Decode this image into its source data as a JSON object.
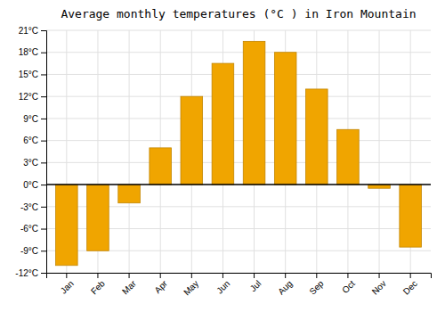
{
  "chart_data": {
    "type": "bar",
    "title": "Average monthly temperatures (°C ) in Iron Mountain",
    "categories": [
      "Jan",
      "Feb",
      "Mar",
      "Apr",
      "May",
      "Jun",
      "Jul",
      "Aug",
      "Sep",
      "Oct",
      "Nov",
      "Dec"
    ],
    "values": [
      -11,
      -9,
      -2.5,
      5,
      12,
      16.5,
      19.5,
      18,
      13,
      7.5,
      -0.5,
      -8.5
    ],
    "color": "#F0A500",
    "ylim": [
      -12,
      21
    ],
    "yticks": [
      {
        "value": -12,
        "label": "-12°C"
      },
      {
        "value": -9,
        "label": "-9°C"
      },
      {
        "value": -6,
        "label": "-6°C"
      },
      {
        "value": -3,
        "label": "-3°C"
      },
      {
        "value": 0,
        "label": "0°C"
      },
      {
        "value": 3,
        "label": "3°C"
      },
      {
        "value": 6,
        "label": "6°C"
      },
      {
        "value": 9,
        "label": "9°C"
      },
      {
        "value": 12,
        "label": "12°C"
      },
      {
        "value": 15,
        "label": "15°C"
      },
      {
        "value": 18,
        "label": "18°C"
      },
      {
        "value": 21,
        "label": "21°C"
      }
    ],
    "grid": true
  }
}
